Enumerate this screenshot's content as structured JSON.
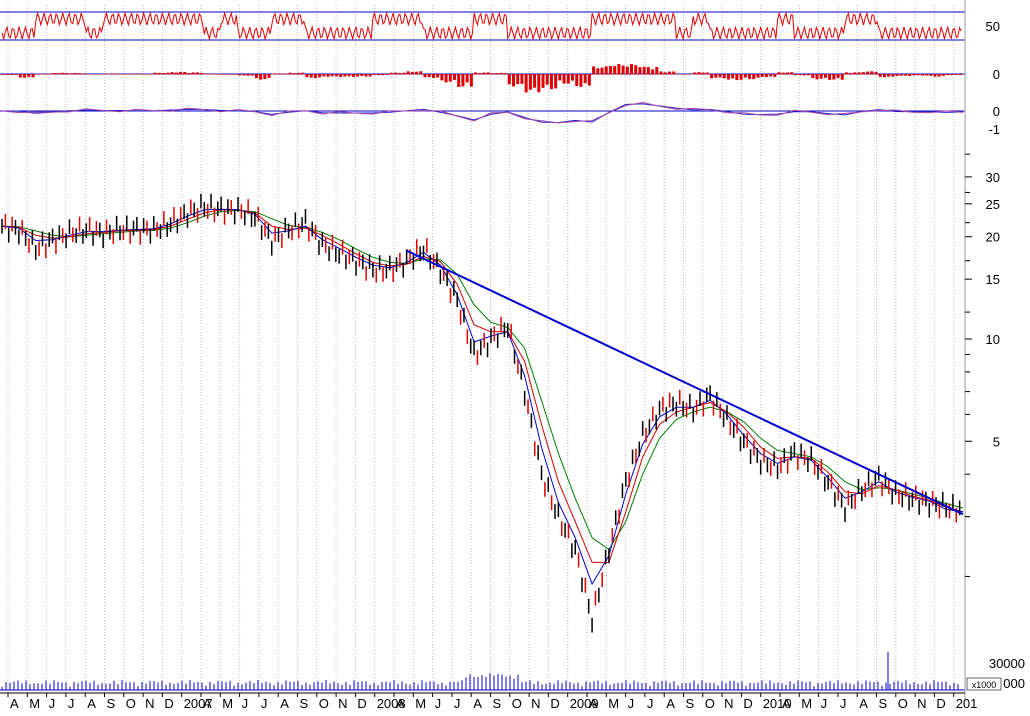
{
  "chart_data": {
    "type": "line",
    "title": "",
    "price_scale": "log",
    "price_axis_ticks": [
      "30",
      "25",
      "20",
      "15",
      "10",
      "5"
    ],
    "price_axis_range": [
      1.3,
      36
    ],
    "osc1_ticks": [
      "50"
    ],
    "osc2_ticks": [
      "0"
    ],
    "osc3_ticks": [
      "0",
      "-1"
    ],
    "volume_ticks": [
      "30000",
      "000"
    ],
    "volume_unit": "x1000",
    "x_tick_labels": [
      "A",
      "M",
      "J",
      "J",
      "A",
      "S",
      "O",
      "N",
      "D",
      "2007",
      "A",
      "M",
      "J",
      "J",
      "A",
      "S",
      "O",
      "N",
      "D",
      "2008",
      "A",
      "M",
      "J",
      "J",
      "A",
      "S",
      "O",
      "N",
      "D",
      "2009",
      "A",
      "M",
      "J",
      "J",
      "A",
      "S",
      "O",
      "N",
      "D",
      "2010",
      "A",
      "M",
      "J",
      "J",
      "A",
      "S",
      "O",
      "N",
      "D",
      "201"
    ],
    "grid": "vertical-dotted",
    "legend": "none",
    "series": [
      {
        "color": "#000000",
        "x": [
          "2006-04",
          "2006-05",
          "2006-06",
          "2006-07",
          "2006-08",
          "2006-09",
          "2006-10",
          "2006-11",
          "2006-12",
          "2007-01",
          "2007-02",
          "2007-03",
          "2007-04",
          "2007-05",
          "2007-06",
          "2007-07",
          "2007-08",
          "2007-09",
          "2007-10",
          "2007-11",
          "2007-12",
          "2008-01",
          "2008-02",
          "2008-03",
          "2008-04",
          "2008-05",
          "2008-06",
          "2008-07",
          "2008-08",
          "2008-09",
          "2008-10",
          "2008-11",
          "2008-12",
          "2009-01",
          "2009-02",
          "2009-03",
          "2009-04",
          "2009-05",
          "2009-06",
          "2009-07",
          "2009-08",
          "2009-09",
          "2009-10",
          "2009-11",
          "2009-12",
          "2010-01",
          "2010-02",
          "2010-03",
          "2010-04",
          "2010-05",
          "2010-06",
          "2010-07",
          "2010-08",
          "2010-09",
          "2010-10",
          "2010-11",
          "2010-12",
          "2011-01"
        ],
        "values": [
          21.5,
          21,
          18.5,
          19.5,
          20.5,
          21,
          20.5,
          21,
          21,
          21,
          22,
          23.5,
          24.5,
          24,
          24,
          23,
          19.5,
          21,
          22,
          19,
          18,
          17,
          16,
          16,
          17,
          18.5,
          16,
          13,
          9,
          10,
          11,
          7,
          4,
          3,
          2.4,
          1.5,
          2.4,
          3.8,
          5.2,
          6.2,
          6.5,
          6.2,
          6.8,
          5.8,
          5,
          4.4,
          4.2,
          4.6,
          4.4,
          3.8,
          3.2,
          3.6,
          3.9,
          3.5,
          3.4,
          3.3,
          3.2,
          3.15
        ]
      },
      {
        "color": "#0000cc",
        "values": [
          21.5,
          21.2,
          19.5,
          19.6,
          20.2,
          20.7,
          20.7,
          20.9,
          21,
          21.1,
          21.8,
          23,
          24,
          24.1,
          24,
          23.3,
          20.5,
          20.8,
          21.5,
          19.6,
          18.5,
          17.4,
          16.5,
          16.2,
          16.8,
          18,
          16.5,
          13.5,
          9.8,
          10.2,
          10.5,
          7.8,
          4.8,
          3.3,
          2.6,
          1.9,
          2.3,
          3.5,
          4.9,
          5.9,
          6.3,
          6.3,
          6.6,
          6,
          5.2,
          4.6,
          4.3,
          4.5,
          4.4,
          3.9,
          3.4,
          3.55,
          3.8,
          3.55,
          3.42,
          3.33,
          3.15,
          3.1
        ]
      },
      {
        "color": "#cc0000",
        "values": [
          21.5,
          21.3,
          20.2,
          19.8,
          20,
          20.4,
          20.6,
          20.8,
          20.9,
          21,
          21.5,
          22.5,
          23.5,
          24,
          24,
          23.5,
          21.5,
          21,
          21.2,
          20.2,
          19,
          17.8,
          16.8,
          16.4,
          16.6,
          17.5,
          16.9,
          14.5,
          11,
          10.5,
          10.5,
          8.6,
          5.6,
          3.8,
          2.9,
          2.2,
          2.2,
          3.1,
          4.5,
          5.6,
          6.1,
          6.3,
          6.5,
          6.1,
          5.5,
          4.8,
          4.45,
          4.5,
          4.45,
          4.05,
          3.55,
          3.5,
          3.7,
          3.6,
          3.45,
          3.35,
          3.2,
          3.1
        ]
      },
      {
        "color": "#008000",
        "values": [
          21.5,
          21.4,
          20.8,
          20.2,
          20,
          20.2,
          20.4,
          20.6,
          20.8,
          20.9,
          21.2,
          22,
          23,
          23.7,
          23.9,
          23.7,
          22.6,
          21.6,
          21.3,
          20.6,
          19.6,
          18.4,
          17.4,
          16.8,
          16.7,
          17.2,
          17.1,
          15.5,
          12.6,
          11.2,
          10.8,
          9.4,
          6.6,
          4.6,
          3.4,
          2.6,
          2.4,
          2.9,
          4,
          5.1,
          5.8,
          6.1,
          6.3,
          6.1,
          5.7,
          5.1,
          4.7,
          4.6,
          4.5,
          4.2,
          3.8,
          3.6,
          3.65,
          3.6,
          3.5,
          3.4,
          3.28,
          3.18
        ]
      }
    ],
    "trendline": {
      "color": "#0000cc",
      "from": [
        "2008-04",
        18.2
      ],
      "to": [
        "2011-01",
        3.05
      ]
    }
  }
}
